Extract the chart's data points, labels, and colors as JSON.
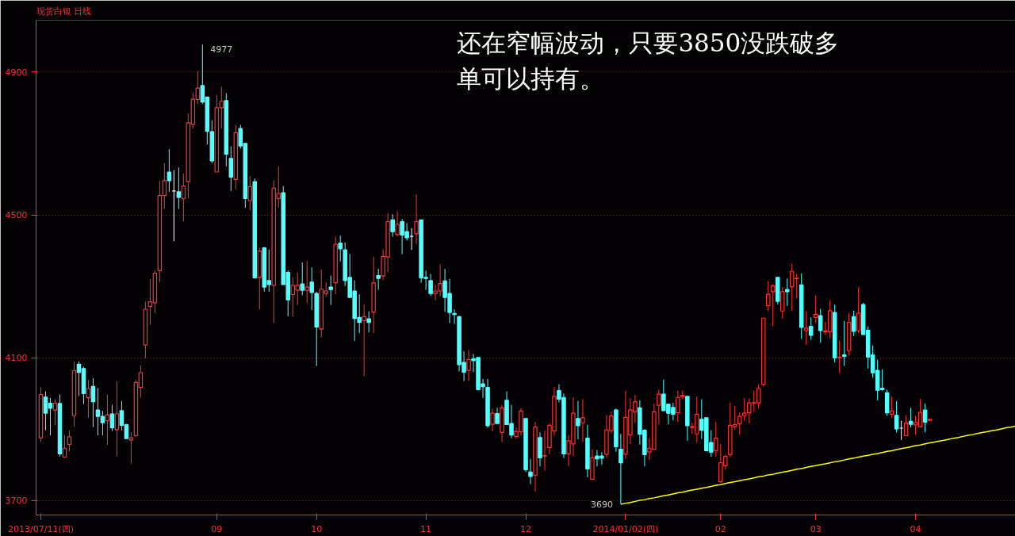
{
  "chart_data": {
    "type": "candlestick",
    "title": "现货白银  日线",
    "categories": [
      "2013/07/11(四)",
      null,
      null,
      null,
      null,
      null,
      null,
      null,
      null,
      null,
      null,
      null,
      null,
      null,
      null,
      null,
      null,
      null,
      null,
      null,
      null,
      null,
      null,
      null,
      null,
      null,
      null,
      null,
      null,
      null,
      null,
      null,
      null,
      null,
      null,
      null,
      null,
      "09",
      null,
      null,
      null,
      null,
      null,
      null,
      null,
      null,
      null,
      null,
      null,
      null,
      null,
      null,
      null,
      null,
      null,
      null,
      null,
      null,
      "10",
      null,
      null,
      null,
      null,
      null,
      null,
      null,
      null,
      null,
      null,
      null,
      null,
      null,
      null,
      null,
      null,
      null,
      null,
      null,
      null,
      null,
      null,
      "11",
      null,
      null,
      null,
      null,
      null,
      null,
      null,
      null,
      null,
      null,
      null,
      null,
      null,
      null,
      null,
      null,
      null,
      null,
      null,
      null,
      "12",
      null,
      null,
      null,
      null,
      null,
      null,
      null,
      null,
      null,
      null,
      null,
      null,
      null,
      null,
      null,
      null,
      null,
      null,
      null,
      null,
      "2014/01/02(四)",
      null,
      null,
      null,
      null,
      null,
      null,
      null,
      null,
      null,
      null,
      null,
      null,
      null,
      null,
      null,
      null,
      null,
      null,
      null,
      "02",
      null,
      null,
      null,
      null,
      null,
      null,
      null,
      null,
      null,
      null,
      null,
      null,
      null,
      null,
      null,
      null,
      null,
      null,
      null,
      "03",
      null,
      null,
      null,
      null,
      null,
      null,
      null,
      null,
      null,
      null,
      null,
      null,
      null,
      null,
      null,
      null,
      null,
      null,
      null,
      null,
      "04",
      null,
      null,
      null,
      null,
      null,
      null,
      null,
      null,
      null,
      null,
      null,
      null,
      null,
      null,
      null,
      null,
      null,
      null,
      null,
      null,
      null
    ],
    "ohlc": [
      [
        3876,
        4017,
        3865,
        3997
      ],
      [
        3990,
        4006,
        3897,
        3945
      ],
      [
        3973,
        3988,
        3883,
        3959
      ],
      [
        3954,
        3984,
        3911,
        3973
      ],
      [
        3972,
        3997,
        3824,
        3831
      ],
      [
        3822,
        3883,
        3822,
        3847
      ],
      [
        3858,
        3897,
        3838,
        3879
      ],
      [
        3938,
        4090,
        3908,
        4064
      ],
      [
        4082,
        4090,
        3993,
        4059
      ],
      [
        4070,
        4075,
        3970,
        4000
      ],
      [
        3988,
        4038,
        3932,
        4014
      ],
      [
        4020,
        4043,
        3906,
        3977
      ],
      [
        3954,
        4016,
        3883,
        3936
      ],
      [
        3936,
        3952,
        3883,
        3918
      ],
      [
        3924,
        3997,
        3856,
        3940
      ],
      [
        3943,
        3968,
        3895,
        3904
      ],
      [
        3899,
        4034,
        3824,
        3943
      ],
      [
        3952,
        3979,
        3897,
        3911
      ],
      [
        3913,
        3915,
        3874,
        3874
      ],
      [
        3870,
        3892,
        3804,
        3876
      ],
      [
        3882,
        4038,
        3879,
        4031
      ],
      [
        4017,
        4079,
        3988,
        4059
      ],
      [
        4136,
        4257,
        4098,
        4236
      ],
      [
        4244,
        4321,
        4193,
        4257
      ],
      [
        4254,
        4344,
        4225,
        4337
      ],
      [
        4344,
        4595,
        4312,
        4554
      ],
      [
        4554,
        4645,
        4517,
        4596
      ],
      [
        4620,
        4684,
        4565,
        4596
      ],
      [
        4567,
        4625,
        4426,
        4567
      ],
      [
        4565,
        4633,
        4517,
        4549
      ],
      [
        4546,
        4616,
        4482,
        4581
      ],
      [
        4593,
        4784,
        4546,
        4758
      ],
      [
        4754,
        4843,
        4742,
        4824
      ],
      [
        4823,
        4903,
        4811,
        4855
      ],
      [
        4862,
        4977,
        4811,
        4816
      ],
      [
        4830,
        4830,
        4697,
        4734
      ],
      [
        4733,
        4765,
        4645,
        4651
      ],
      [
        4620,
        4836,
        4620,
        4800
      ],
      [
        4800,
        4859,
        4742,
        4818
      ],
      [
        4820,
        4841,
        4636,
        4670
      ],
      [
        4658,
        4692,
        4567,
        4606
      ],
      [
        4599,
        4752,
        4572,
        4730
      ],
      [
        4742,
        4752,
        4686,
        4693
      ],
      [
        4700,
        4700,
        4520,
        4546
      ],
      [
        4540,
        4608,
        4513,
        4579
      ],
      [
        4593,
        4602,
        4324,
        4324
      ],
      [
        4325,
        4408,
        4236,
        4399
      ],
      [
        4408,
        4410,
        4285,
        4298
      ],
      [
        4316,
        4403,
        4285,
        4305
      ],
      [
        4303,
        4597,
        4198,
        4575
      ],
      [
        4546,
        4636,
        4520,
        4560
      ],
      [
        4562,
        4581,
        4305,
        4305
      ],
      [
        4339,
        4344,
        4216,
        4262
      ],
      [
        4277,
        4326,
        4216,
        4303
      ],
      [
        4289,
        4339,
        4248,
        4303
      ],
      [
        4307,
        4367,
        4275,
        4289
      ],
      [
        4289,
        4371,
        4253,
        4298
      ],
      [
        4312,
        4353,
        4234,
        4283
      ],
      [
        4280,
        4285,
        4077,
        4186
      ],
      [
        4180,
        4348,
        4157,
        4292
      ],
      [
        4280,
        4312,
        4271,
        4287
      ],
      [
        4298,
        4330,
        4248,
        4291
      ],
      [
        4310,
        4439,
        4278,
        4418
      ],
      [
        4421,
        4442,
        4370,
        4405
      ],
      [
        4402,
        4423,
        4301,
        4316
      ],
      [
        4325,
        4391,
        4269,
        4269
      ],
      [
        4287,
        4317,
        4147,
        4210
      ],
      [
        4213,
        4278,
        4169,
        4199
      ],
      [
        4204,
        4250,
        4049,
        4215
      ],
      [
        4209,
        4230,
        4171,
        4199
      ],
      [
        4228,
        4383,
        4169,
        4310
      ],
      [
        4330,
        4349,
        4290,
        4322
      ],
      [
        4329,
        4404,
        4317,
        4384
      ],
      [
        4382,
        4505,
        4340,
        4481
      ],
      [
        4486,
        4502,
        4439,
        4453
      ],
      [
        4445,
        4511,
        4439,
        4474
      ],
      [
        4481,
        4488,
        4390,
        4444
      ],
      [
        4453,
        4477,
        4428,
        4436
      ],
      [
        4440,
        4463,
        4402,
        4440
      ],
      [
        4447,
        4558,
        4419,
        4481
      ],
      [
        4486,
        4486,
        4310,
        4324
      ],
      [
        4325,
        4344,
        4290,
        4322
      ],
      [
        4316,
        4335,
        4273,
        4280
      ],
      [
        4280,
        4305,
        4261,
        4287
      ],
      [
        4287,
        4361,
        4273,
        4308
      ],
      [
        4315,
        4349,
        4229,
        4269
      ],
      [
        4280,
        4321,
        4197,
        4227
      ],
      [
        4224,
        4236,
        4195,
        4221
      ],
      [
        4215,
        4218,
        4062,
        4081
      ],
      [
        4087,
        4118,
        4035,
        4060
      ],
      [
        4065,
        4122,
        4035,
        4095
      ],
      [
        4097,
        4111,
        4060,
        4092
      ],
      [
        4101,
        4101,
        4009,
        4011
      ],
      [
        4027,
        4041,
        3988,
        4019
      ],
      [
        4017,
        4041,
        3904,
        3910
      ],
      [
        3914,
        3958,
        3894,
        3945
      ],
      [
        3944,
        3960,
        3916,
        3916
      ],
      [
        3891,
        3968,
        3865,
        3960
      ],
      [
        3981,
        4006,
        3913,
        3913
      ],
      [
        3916,
        3968,
        3875,
        3884
      ],
      [
        3880,
        3905,
        3873,
        3894
      ],
      [
        3893,
        3959,
        3882,
        3951
      ],
      [
        3930,
        3930,
        3780,
        3787
      ],
      [
        3780,
        3817,
        3746,
        3768
      ],
      [
        3771,
        3921,
        3725,
        3906
      ],
      [
        3877,
        3891,
        3796,
        3820
      ],
      [
        3825,
        3896,
        3784,
        3826
      ],
      [
        3849,
        3916,
        3830,
        3911
      ],
      [
        3895,
        4018,
        3882,
        3992
      ],
      [
        4008,
        4026,
        3975,
        3984
      ],
      [
        3989,
        4000,
        3819,
        3831
      ],
      [
        3831,
        3884,
        3796,
        3868
      ],
      [
        3859,
        3989,
        3825,
        3945
      ],
      [
        3930,
        3979,
        3872,
        3910
      ],
      [
        3918,
        3984,
        3865,
        3932
      ],
      [
        3875,
        3913,
        3765,
        3789
      ],
      [
        3760,
        3844,
        3760,
        3820
      ],
      [
        3825,
        3842,
        3796,
        3817
      ],
      [
        3825,
        3836,
        3801,
        3819
      ],
      [
        3830,
        3940,
        3820,
        3898
      ],
      [
        3896,
        3949,
        3889,
        3937
      ],
      [
        3954,
        3958,
        3837,
        3851
      ],
      [
        3844,
        3887,
        3690,
        3806
      ],
      [
        3830,
        4008,
        3817,
        3933
      ],
      [
        3884,
        3987,
        3859,
        3954
      ],
      [
        3949,
        3996,
        3918,
        3977
      ],
      [
        3960,
        3981,
        3857,
        3886
      ],
      [
        3897,
        3900,
        3796,
        3829
      ],
      [
        3836,
        3875,
        3815,
        3847
      ],
      [
        3844,
        3972,
        3843,
        3949
      ],
      [
        3967,
        4011,
        3913,
        3998
      ],
      [
        3998,
        4039,
        3951,
        3952
      ],
      [
        3970,
        3972,
        3914,
        3945
      ],
      [
        3961,
        3974,
        3925,
        3942
      ],
      [
        3946,
        4008,
        3920,
        3989
      ],
      [
        3991,
        4008,
        3984,
        3995
      ],
      [
        3992,
        3992,
        3868,
        3910
      ],
      [
        3905,
        3919,
        3887,
        3907
      ],
      [
        3887,
        3992,
        3863,
        3942
      ],
      [
        3928,
        3984,
        3873,
        3897
      ],
      [
        3932,
        3934,
        3840,
        3840
      ],
      [
        3863,
        3897,
        3823,
        3836
      ],
      [
        3840,
        3921,
        3824,
        3875
      ],
      [
        3753,
        3859,
        3750,
        3806
      ],
      [
        3798,
        3829,
        3787,
        3824
      ],
      [
        3829,
        3975,
        3822,
        3911
      ],
      [
        3907,
        3965,
        3899,
        3913
      ],
      [
        3915,
        3947,
        3884,
        3936
      ],
      [
        3938,
        3987,
        3924,
        3945
      ],
      [
        3946,
        3986,
        3916,
        3974
      ],
      [
        3974,
        4008,
        3949,
        3975
      ],
      [
        3974,
        4026,
        3958,
        4014
      ],
      [
        4026,
        4211,
        4020,
        4211
      ],
      [
        4246,
        4315,
        4230,
        4278
      ],
      [
        4285,
        4306,
        4188,
        4301
      ],
      [
        4325,
        4325,
        4250,
        4258
      ],
      [
        4231,
        4298,
        4210,
        4285
      ],
      [
        4291,
        4322,
        4245,
        4285
      ],
      [
        4299,
        4364,
        4232,
        4342
      ],
      [
        4321,
        4335,
        4266,
        4323
      ],
      [
        4304,
        4336,
        4153,
        4185
      ],
      [
        4176,
        4230,
        4136,
        4183
      ],
      [
        4188,
        4213,
        4150,
        4163
      ],
      [
        4213,
        4275,
        4197,
        4222
      ],
      [
        4218,
        4237,
        4142,
        4176
      ],
      [
        4173,
        4201,
        4165,
        4175
      ],
      [
        4173,
        4261,
        4155,
        4232
      ],
      [
        4227,
        4249,
        4087,
        4100
      ],
      [
        4100,
        4148,
        4058,
        4102
      ],
      [
        4108,
        4203,
        4077,
        4104
      ],
      [
        4120,
        4226,
        4106,
        4199
      ],
      [
        4215,
        4232,
        4161,
        4174
      ],
      [
        4176,
        4298,
        4169,
        4225
      ],
      [
        4249,
        4254,
        4165,
        4165
      ],
      [
        4177,
        4188,
        4070,
        4102
      ],
      [
        4108,
        4135,
        4044,
        4058
      ],
      [
        4065,
        4095,
        3981,
        4009
      ],
      [
        4015,
        4068,
        4007,
        4011
      ],
      [
        4002,
        4011,
        3938,
        3946
      ],
      [
        3942,
        3992,
        3933,
        3951
      ],
      [
        3939,
        3979,
        3891,
        3901
      ],
      [
        3903,
        3924,
        3870,
        3903
      ],
      [
        3882,
        3940,
        3882,
        3917
      ],
      [
        3922,
        3960,
        3905,
        3914
      ],
      [
        3912,
        3938,
        3884,
        3919
      ],
      [
        3907,
        3985,
        3905,
        3947
      ],
      [
        3954,
        3972,
        3892,
        3920
      ],
      [
        3925,
        3930,
        3925,
        3928
      ],
      null,
      null,
      null,
      null,
      null,
      null,
      null,
      null,
      null,
      null,
      null,
      null,
      null,
      null,
      null,
      null,
      null,
      null
    ],
    "series": [
      {
        "type": "line",
        "color": "#ffff00",
        "values": [
          null,
          null,
          null,
          null,
          null,
          null,
          null,
          null,
          null,
          null,
          null,
          null,
          null,
          null,
          null,
          null,
          null,
          null,
          null,
          null,
          null,
          null,
          null,
          null,
          null,
          null,
          null,
          null,
          null,
          null,
          null,
          null,
          null,
          null,
          null,
          null,
          null,
          null,
          null,
          null,
          null,
          null,
          null,
          null,
          null,
          null,
          null,
          null,
          null,
          null,
          null,
          null,
          null,
          null,
          null,
          null,
          null,
          null,
          null,
          null,
          null,
          null,
          null,
          null,
          null,
          null,
          null,
          null,
          null,
          null,
          null,
          null,
          null,
          null,
          null,
          null,
          null,
          null,
          null,
          null,
          null,
          null,
          null,
          null,
          null,
          null,
          null,
          null,
          null,
          null,
          null,
          null,
          null,
          null,
          null,
          null,
          null,
          null,
          null,
          null,
          null,
          null,
          null,
          null,
          null,
          null,
          null,
          null,
          null,
          null,
          null,
          null,
          null,
          null,
          null,
          null,
          null,
          null,
          null,
          null,
          null,
          null,
          3690,
          3693,
          3695,
          3698,
          3701,
          3703,
          3706,
          3708,
          3711,
          3714,
          3716,
          3719,
          3722,
          3724,
          3727,
          3730,
          3732,
          3735,
          3737,
          3740,
          3743,
          3745,
          3748,
          3751,
          3753,
          3756,
          3759,
          3761,
          3764,
          3767,
          3769,
          3772,
          3774,
          3777,
          3780,
          3782,
          3785,
          3788,
          3790,
          3793,
          3796,
          3798,
          3801,
          3803,
          3806,
          3809,
          3811,
          3814,
          3817,
          3819,
          3822,
          3825,
          3827,
          3830,
          3832,
          3835,
          3838,
          3840,
          3843,
          3846,
          3848,
          3851,
          3854,
          3856,
          3859,
          3862,
          3864,
          3867,
          3869,
          3872,
          3875,
          3877,
          3880,
          3883,
          3885,
          3888,
          3891,
          3893,
          3896,
          3898,
          3901,
          3904,
          3906,
          3909
        ]
      }
    ],
    "ylim": [
      3660,
      5045
    ],
    "yticks": [
      3700,
      4100,
      4500,
      4900
    ],
    "grid": "y",
    "annotations": [
      "4977",
      "3690",
      "还在窄幅波动，只要3850没跌破多单可以持有。"
    ]
  }
}
